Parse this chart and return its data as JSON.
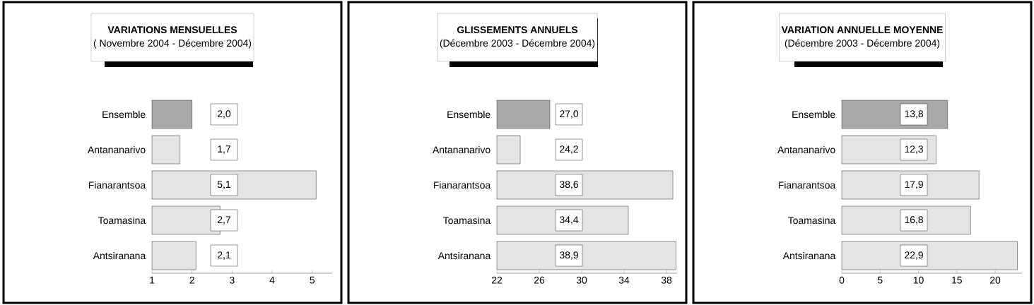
{
  "chart_data": [
    {
      "type": "bar",
      "orientation": "horizontal",
      "title": "VARIATIONS MENSUELLES",
      "subtitle": "( Novembre 2004 - Décembre 2004)",
      "categories": [
        "Ensemble",
        "Antananarivo",
        "Fianarantsoa",
        "Toamasina",
        "Antsiranana"
      ],
      "values": [
        2.0,
        1.7,
        5.1,
        2.7,
        2.1
      ],
      "value_labels": [
        "2,0",
        "1,7",
        "5,1",
        "2,7",
        "2,1"
      ],
      "colors": [
        "#a8a8a8",
        "#e4e4e4",
        "#e4e4e4",
        "#e4e4e4",
        "#e4e4e4"
      ],
      "xlim": [
        1,
        5.5
      ],
      "xticks": [
        1,
        2,
        3,
        4,
        5
      ]
    },
    {
      "type": "bar",
      "orientation": "horizontal",
      "title": "GLISSEMENTS ANNUELS",
      "subtitle": "(Décembre 2003 - Décembre 2004)",
      "categories": [
        "Ensemble",
        "Antananarivo",
        "Fianarantsoa",
        "Toamasina",
        "Antsiranana"
      ],
      "values": [
        27.0,
        24.2,
        38.6,
        34.4,
        38.9
      ],
      "value_labels": [
        "27,0",
        "24,2",
        "38,6",
        "34,4",
        "38,9"
      ],
      "colors": [
        "#a8a8a8",
        "#e4e4e4",
        "#e4e4e4",
        "#e4e4e4",
        "#e4e4e4"
      ],
      "xlim": [
        22,
        39
      ],
      "xticks": [
        22,
        26,
        30,
        34,
        38
      ]
    },
    {
      "type": "bar",
      "orientation": "horizontal",
      "title": "VARIATION ANNUELLE MOYENNE",
      "subtitle": "(Décembre 2003 -  Décembre 2004)",
      "categories": [
        "Ensemble",
        "Antananarivo",
        "Fianarantsoa",
        "Toamasina",
        "Antsiranana"
      ],
      "values": [
        13.8,
        12.3,
        17.9,
        16.8,
        22.9
      ],
      "value_labels": [
        "13,8",
        "12,3",
        "17,9",
        "16,8",
        "22,9"
      ],
      "colors": [
        "#a8a8a8",
        "#e4e4e4",
        "#e4e4e4",
        "#e4e4e4",
        "#e4e4e4"
      ],
      "xlim": [
        0,
        23.5
      ],
      "xticks": [
        0,
        5,
        10,
        15,
        20
      ]
    }
  ]
}
